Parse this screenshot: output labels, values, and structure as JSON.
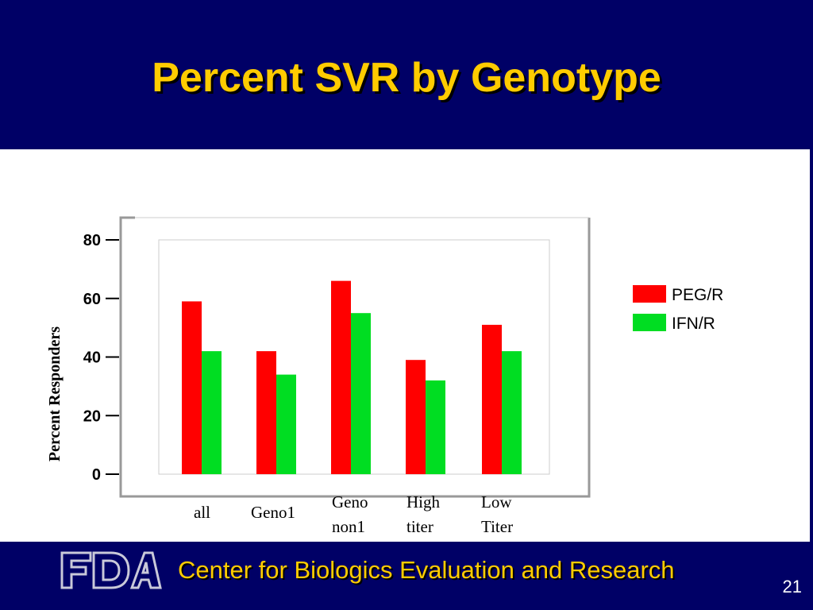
{
  "slide": {
    "title": "Percent SVR by Genotype",
    "footer_text": "Center for Biologics Evaluation and Research",
    "page_number": "21",
    "logo_text": "FDA"
  },
  "colors": {
    "background": "#000066",
    "title": "#ffcc00",
    "peg_r": "#ff0000",
    "ifn_r": "#00dd22"
  },
  "chart_data": {
    "type": "bar",
    "title": "",
    "xlabel": "",
    "ylabel": "Percent Responders",
    "ylim": [
      0,
      80
    ],
    "yticks": [
      0,
      20,
      40,
      60,
      80
    ],
    "categories": [
      [
        "all"
      ],
      [
        "Geno1"
      ],
      [
        "Geno",
        "non1"
      ],
      [
        "High",
        "titer"
      ],
      [
        "Low",
        "Titer"
      ]
    ],
    "series": [
      {
        "name": "PEG/R",
        "color": "#ff0000",
        "values": [
          59,
          42,
          66,
          39,
          51
        ]
      },
      {
        "name": "IFN/R",
        "color": "#00dd22",
        "values": [
          42,
          34,
          55,
          32,
          42
        ]
      }
    ],
    "legend": "right",
    "grid": false
  }
}
